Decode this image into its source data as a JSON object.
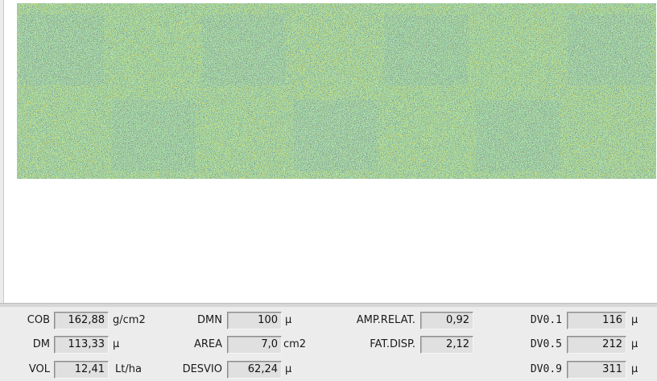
{
  "colors": {
    "card_yellow": "#f2c80f",
    "scanned_block": "#a48e62",
    "droplet_dark": "#2e3c49",
    "droplet_blue": "#1d2fb6",
    "droplet_green": "#7ed36a"
  },
  "stats": {
    "cob": {
      "label": "COB",
      "value": "162,88",
      "unit": "g/cm2"
    },
    "dm": {
      "label": "DM",
      "value": "113,33",
      "unit": "µ"
    },
    "vol": {
      "label": "VOL",
      "value": "12,41",
      "unit": "Lt/ha"
    },
    "dmn": {
      "label": "DMN",
      "value": "100",
      "unit": "µ"
    },
    "area": {
      "label": "AREA",
      "value": "7,0",
      "unit": "cm2"
    },
    "desvio": {
      "label": "DESVIO",
      "value": "62,24",
      "unit": "µ"
    },
    "amp_relat": {
      "label": "AMP.RELAT.",
      "value": "0,92"
    },
    "fat_disp": {
      "label": "FAT.DISP.",
      "value": "2,12"
    },
    "dv01": {
      "label": "DV0.1",
      "value": "116",
      "unit": "µ"
    },
    "dv05": {
      "label": "DV0.5",
      "value": "212",
      "unit": "µ"
    },
    "dv09": {
      "label": "DV0.9",
      "value": "311",
      "unit": "µ"
    }
  }
}
